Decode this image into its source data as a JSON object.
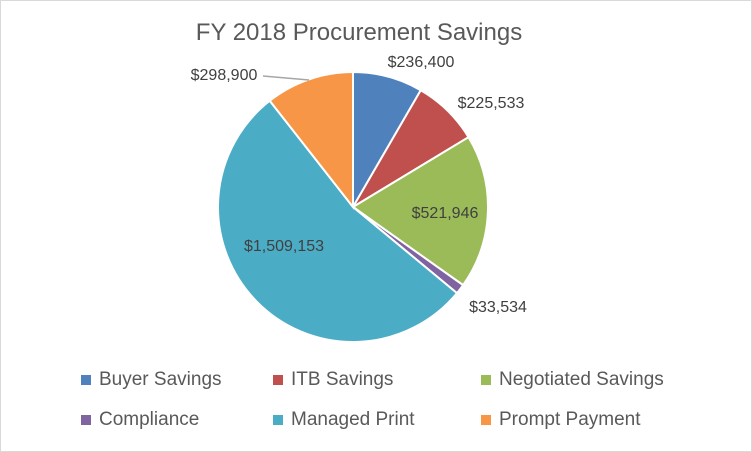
{
  "chart_data": {
    "type": "pie",
    "title": "FY 2018 Procurement Savings",
    "categories": [
      "Buyer Savings",
      "ITB Savings",
      "Negotiated Savings",
      "Compliance",
      "Managed Print",
      "Prompt Payment"
    ],
    "values": [
      236400,
      225533,
      521946,
      33534,
      1509153,
      298900
    ],
    "data_labels": [
      "$236,400",
      "$225,533",
      "$521,946",
      "$33,534",
      "$1,509,153",
      "$298,900"
    ],
    "colors": [
      "#4f81bd",
      "#c0504d",
      "#9bbb59",
      "#8064a2",
      "#4bacc6",
      "#f79646"
    ],
    "legend_position": "bottom",
    "start_angle_deg": 0,
    "direction": "clockwise"
  }
}
